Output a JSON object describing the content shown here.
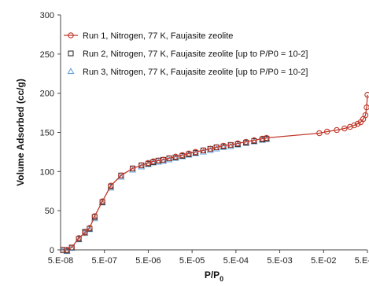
{
  "chart_data": {
    "type": "scatter",
    "x_scale": "log",
    "xlabel_main": "P/P",
    "xlabel_sub": "0",
    "ylabel": "Volume Adsorbed (cc/g)",
    "xlim": [
      5e-08,
      0.5
    ],
    "ylim": [
      0,
      300
    ],
    "x_ticks": [
      5e-08,
      5e-07,
      5e-06,
      5e-05,
      0.0005,
      0.005,
      0.05,
      0.5
    ],
    "x_tick_labels": [
      "5.E-08",
      "5.E-07",
      "5.E-06",
      "5.E-05",
      "5.E-04",
      "5.E-03",
      "5.E-02",
      "5.E-01"
    ],
    "y_ticks": [
      0,
      50,
      100,
      150,
      200,
      250,
      300
    ],
    "y_tick_labels": [
      "0",
      "50",
      "100",
      "150",
      "200",
      "250",
      "300"
    ],
    "grid": false,
    "legend_position": "top-left",
    "series": [
      {
        "name": "Run 1, Nitrogen, 77 K, Faujasite zeolite",
        "color": "#c0392b",
        "marker": "circle-line",
        "x": [
          5.5e-08,
          7e-08,
          9e-08,
          1.3e-07,
          1.8e-07,
          2.3e-07,
          3e-07,
          4.5e-07,
          7e-07,
          1.2e-06,
          2.2e-06,
          3.5e-06,
          5e-06,
          6.5e-06,
          8.5e-06,
          1.1e-05,
          1.5e-05,
          2.1e-05,
          3e-05,
          4.2e-05,
          6e-05,
          9e-05,
          0.00013,
          0.00018,
          0.00026,
          0.00038,
          0.00055,
          0.00085,
          0.0013,
          0.002,
          0.0025,
          0.04,
          0.06,
          0.1,
          0.15,
          0.2,
          0.25,
          0.3,
          0.35,
          0.4,
          0.45,
          0.48,
          0.5
        ],
        "y": [
          0,
          0,
          3,
          15,
          22,
          28,
          43,
          62,
          82,
          95,
          104,
          108,
          111,
          113,
          114,
          115,
          117,
          119,
          121,
          123,
          125,
          127,
          129,
          131,
          133,
          134,
          136,
          138,
          140,
          142,
          143,
          149,
          151,
          153,
          155,
          157,
          159,
          161,
          163,
          167,
          172,
          182,
          198
        ]
      },
      {
        "name": "Run 2, Nitrogen, 77 K, Faujasite zeolite [up to P/P0 = 10-2]",
        "color": "#333333",
        "marker": "square",
        "x": [
          5.5e-08,
          7e-08,
          9e-08,
          1.3e-07,
          1.8e-07,
          2.3e-07,
          3e-07,
          4.5e-07,
          7e-07,
          1.2e-06,
          2.2e-06,
          3.5e-06,
          5e-06,
          6.5e-06,
          8.5e-06,
          1.1e-05,
          1.5e-05,
          2.1e-05,
          3e-05,
          4.2e-05,
          6e-05,
          9e-05,
          0.00013,
          0.00018,
          0.00026,
          0.00038,
          0.00055,
          0.00085,
          0.0013,
          0.002,
          0.0025
        ],
        "y": [
          0,
          -1,
          3,
          14,
          23,
          27,
          42,
          61,
          81,
          95,
          104,
          108,
          110,
          112,
          114,
          115,
          117,
          118,
          120,
          122,
          124,
          127,
          129,
          131,
          132,
          134,
          135,
          137,
          139,
          141,
          142
        ]
      },
      {
        "name": "Run 3, Nitrogen, 77 K, Faujasite zeolite [up to P/P0 = 10-2]",
        "color": "#6aa3d8",
        "marker": "triangle",
        "x": [
          5.5e-08,
          7e-08,
          9e-08,
          1.3e-07,
          1.8e-07,
          2.3e-07,
          3e-07,
          4.5e-07,
          7e-07,
          1.2e-06,
          2.2e-06,
          3.5e-06,
          5e-06,
          6.5e-06,
          8.5e-06,
          1.1e-05,
          1.5e-05,
          2.1e-05,
          3e-05,
          4.2e-05,
          6e-05,
          9e-05,
          0.00013,
          0.00018,
          0.00026,
          0.00038,
          0.00055,
          0.00085,
          0.0013,
          0.002,
          0.0025
        ],
        "y": [
          -1,
          -2,
          2,
          13,
          21,
          26,
          40,
          60,
          79,
          93,
          102,
          106,
          109,
          111,
          112,
          113,
          115,
          117,
          119,
          121,
          123,
          125,
          127,
          129,
          131,
          132,
          134,
          136,
          138,
          140,
          141
        ]
      }
    ]
  }
}
